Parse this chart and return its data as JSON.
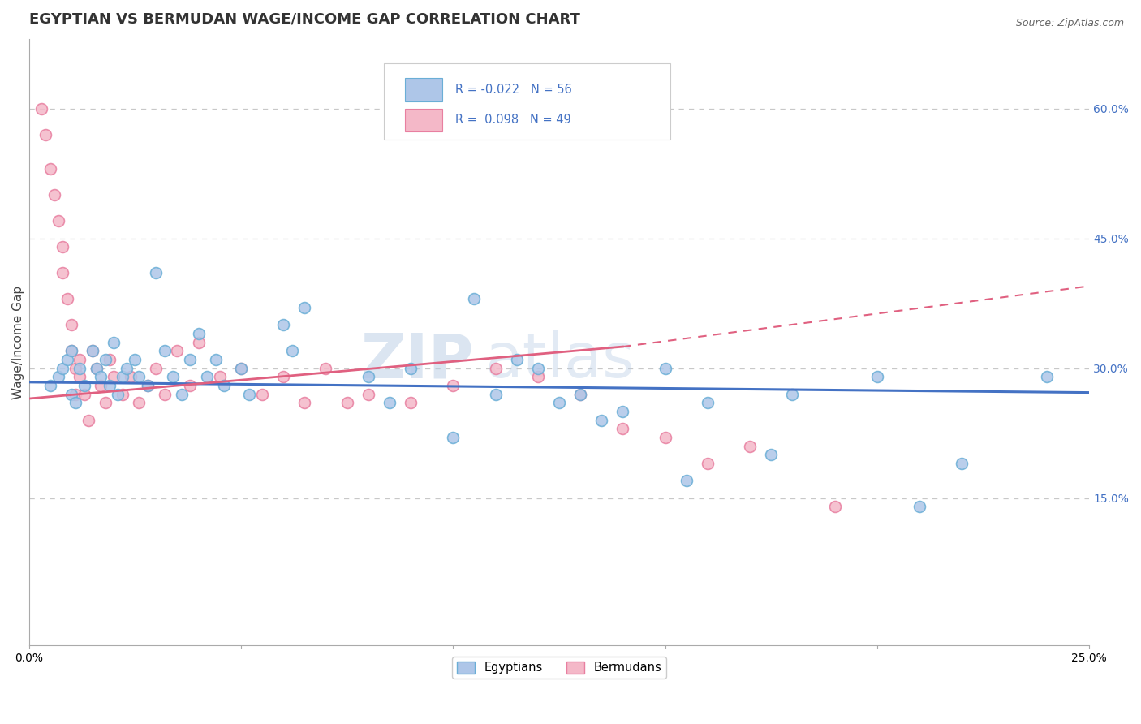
{
  "title": "EGYPTIAN VS BERMUDAN WAGE/INCOME GAP CORRELATION CHART",
  "source": "Source: ZipAtlas.com",
  "ylabel": "Wage/Income Gap",
  "xlim": [
    0.0,
    0.25
  ],
  "ylim": [
    -0.02,
    0.68
  ],
  "ytick_positions": [
    0.15,
    0.3,
    0.45,
    0.6
  ],
  "ytick_labels": [
    "15.0%",
    "30.0%",
    "45.0%",
    "60.0%"
  ],
  "grid_color": "#c8c8c8",
  "background_color": "#ffffff",
  "blue_color": "#aec6e8",
  "blue_edge": "#6aaed6",
  "pink_color": "#f4b8c8",
  "pink_edge": "#e87fa0",
  "blue_line_color": "#4472c4",
  "pink_line_color": "#e06080",
  "legend_r_blue": "R = -0.022",
  "legend_n_blue": "N = 56",
  "legend_r_pink": "R =  0.098",
  "legend_n_pink": "N = 49",
  "legend_label_blue": "Egyptians",
  "legend_label_pink": "Bermudans",
  "watermark_1": "ZIP",
  "watermark_2": "atlas",
  "blue_scatter_x": [
    0.005,
    0.007,
    0.008,
    0.009,
    0.01,
    0.01,
    0.011,
    0.012,
    0.013,
    0.015,
    0.016,
    0.017,
    0.018,
    0.019,
    0.02,
    0.021,
    0.022,
    0.023,
    0.025,
    0.026,
    0.028,
    0.03,
    0.032,
    0.034,
    0.036,
    0.038,
    0.04,
    0.042,
    0.044,
    0.046,
    0.05,
    0.052,
    0.06,
    0.062,
    0.065,
    0.08,
    0.085,
    0.09,
    0.1,
    0.105,
    0.11,
    0.115,
    0.12,
    0.125,
    0.13,
    0.135,
    0.14,
    0.15,
    0.155,
    0.16,
    0.175,
    0.18,
    0.2,
    0.21,
    0.22,
    0.24
  ],
  "blue_scatter_y": [
    0.28,
    0.29,
    0.3,
    0.31,
    0.32,
    0.27,
    0.26,
    0.3,
    0.28,
    0.32,
    0.3,
    0.29,
    0.31,
    0.28,
    0.33,
    0.27,
    0.29,
    0.3,
    0.31,
    0.29,
    0.28,
    0.41,
    0.32,
    0.29,
    0.27,
    0.31,
    0.34,
    0.29,
    0.31,
    0.28,
    0.3,
    0.27,
    0.35,
    0.32,
    0.37,
    0.29,
    0.26,
    0.3,
    0.22,
    0.38,
    0.27,
    0.31,
    0.3,
    0.26,
    0.27,
    0.24,
    0.25,
    0.3,
    0.17,
    0.26,
    0.2,
    0.27,
    0.29,
    0.14,
    0.19,
    0.29
  ],
  "pink_scatter_x": [
    0.003,
    0.004,
    0.005,
    0.006,
    0.007,
    0.008,
    0.008,
    0.009,
    0.01,
    0.01,
    0.011,
    0.011,
    0.012,
    0.012,
    0.013,
    0.014,
    0.015,
    0.016,
    0.017,
    0.018,
    0.019,
    0.02,
    0.022,
    0.024,
    0.026,
    0.028,
    0.03,
    0.032,
    0.035,
    0.038,
    0.04,
    0.045,
    0.05,
    0.055,
    0.06,
    0.065,
    0.07,
    0.075,
    0.08,
    0.09,
    0.1,
    0.11,
    0.12,
    0.13,
    0.14,
    0.15,
    0.16,
    0.17,
    0.19
  ],
  "pink_scatter_y": [
    0.6,
    0.57,
    0.53,
    0.5,
    0.47,
    0.44,
    0.41,
    0.38,
    0.35,
    0.32,
    0.3,
    0.27,
    0.31,
    0.29,
    0.27,
    0.24,
    0.32,
    0.3,
    0.28,
    0.26,
    0.31,
    0.29,
    0.27,
    0.29,
    0.26,
    0.28,
    0.3,
    0.27,
    0.32,
    0.28,
    0.33,
    0.29,
    0.3,
    0.27,
    0.29,
    0.26,
    0.3,
    0.26,
    0.27,
    0.26,
    0.28,
    0.3,
    0.29,
    0.27,
    0.23,
    0.22,
    0.19,
    0.21,
    0.14
  ],
  "title_fontsize": 13,
  "axis_label_fontsize": 11,
  "tick_fontsize": 10,
  "marker_size": 100
}
